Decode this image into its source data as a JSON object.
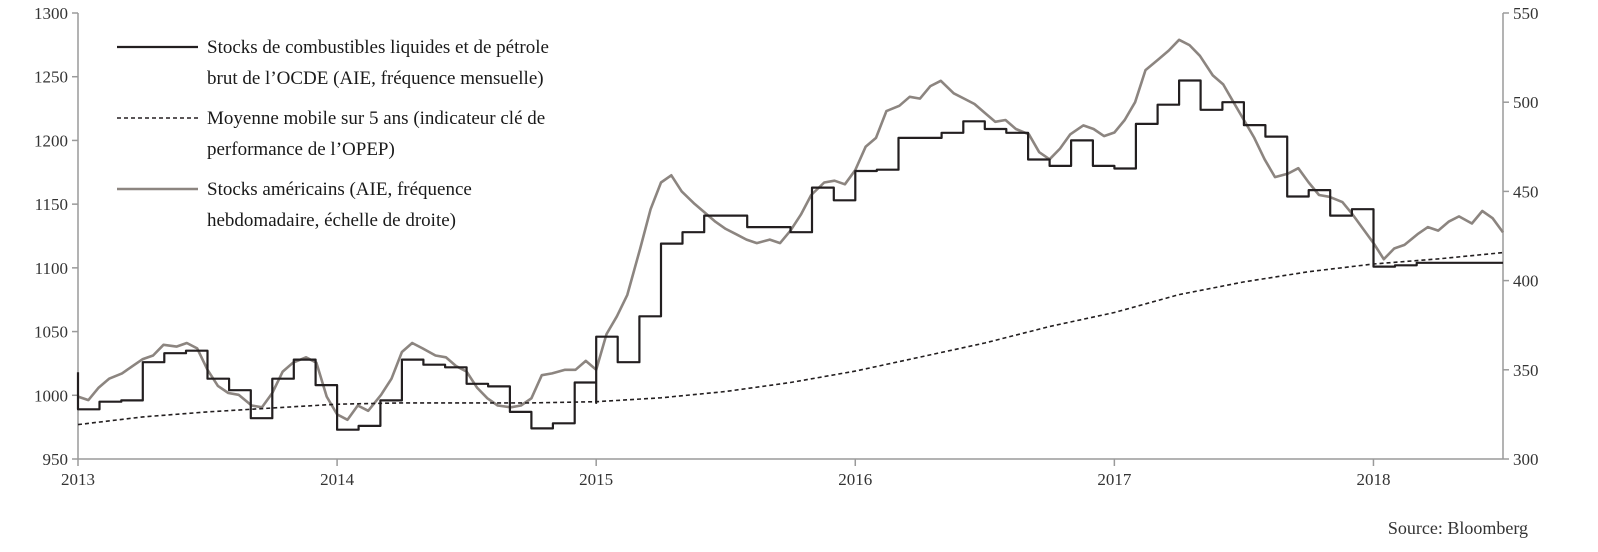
{
  "chart_data": {
    "type": "line",
    "title": "",
    "source": "Source: Bloomberg",
    "x_axis": {
      "range": [
        2013.0,
        2018.5
      ],
      "ticks": [
        "2013",
        "2014",
        "2015",
        "2016",
        "2017",
        "2018"
      ]
    },
    "y_left": {
      "range": [
        950,
        1300
      ],
      "ticks": [
        "950",
        "1000",
        "1050",
        "1100",
        "1150",
        "1200",
        "1250",
        "1300"
      ]
    },
    "y_right": {
      "range": [
        300,
        550
      ],
      "ticks": [
        "300",
        "350",
        "400",
        "450",
        "500",
        "550"
      ]
    },
    "grid": false,
    "legend_position": "top-left",
    "legend": [
      {
        "lines": [
          "Stocks de combustibles liquides et de pétrole",
          "brut de l’OCDE (AIE, fréquence mensuelle)"
        ]
      },
      {
        "lines": [
          "Moyenne mobile sur 5 ans (indicateur clé de",
          "performance de l’OPEP)"
        ]
      },
      {
        "lines": [
          "Stocks américains (AIE, fréquence",
          "hebdomadaire, échelle de droite)"
        ]
      }
    ],
    "series": [
      {
        "name": "Stocks de combustibles liquides et de pétrole brut de l’OCDE (AIE, fréquence mensuelle)",
        "axis": "left",
        "step": true,
        "color": "#231f20",
        "points": [
          [
            2013.0,
            1018
          ],
          [
            2013.0,
            989
          ],
          [
            2013.083,
            995
          ],
          [
            2013.167,
            996
          ],
          [
            2013.25,
            1026
          ],
          [
            2013.333,
            1033
          ],
          [
            2013.417,
            1035
          ],
          [
            2013.5,
            1013
          ],
          [
            2013.583,
            1004
          ],
          [
            2013.667,
            982
          ],
          [
            2013.75,
            1013
          ],
          [
            2013.833,
            1028
          ],
          [
            2013.917,
            1008
          ],
          [
            2014.0,
            973
          ],
          [
            2014.083,
            976
          ],
          [
            2014.167,
            996
          ],
          [
            2014.25,
            1028
          ],
          [
            2014.333,
            1024
          ],
          [
            2014.417,
            1022
          ],
          [
            2014.5,
            1009
          ],
          [
            2014.583,
            1007
          ],
          [
            2014.667,
            987
          ],
          [
            2014.75,
            974
          ],
          [
            2014.833,
            978
          ],
          [
            2014.917,
            1010
          ],
          [
            2015.0,
            994
          ],
          [
            2015.0,
            1046
          ],
          [
            2015.083,
            1026
          ],
          [
            2015.167,
            1062
          ],
          [
            2015.25,
            1119
          ],
          [
            2015.333,
            1128
          ],
          [
            2015.417,
            1141
          ],
          [
            2015.5,
            1141
          ],
          [
            2015.583,
            1132
          ],
          [
            2015.667,
            1132
          ],
          [
            2015.75,
            1128
          ],
          [
            2015.833,
            1163
          ],
          [
            2015.917,
            1153
          ],
          [
            2016.0,
            1176
          ],
          [
            2016.083,
            1177
          ],
          [
            2016.167,
            1202
          ],
          [
            2016.25,
            1202
          ],
          [
            2016.333,
            1206
          ],
          [
            2016.417,
            1215
          ],
          [
            2016.5,
            1209
          ],
          [
            2016.583,
            1206
          ],
          [
            2016.667,
            1185
          ],
          [
            2016.75,
            1180
          ],
          [
            2016.833,
            1200
          ],
          [
            2016.917,
            1180
          ],
          [
            2017.0,
            1178
          ],
          [
            2017.083,
            1213
          ],
          [
            2017.167,
            1228
          ],
          [
            2017.25,
            1247
          ],
          [
            2017.333,
            1224
          ],
          [
            2017.417,
            1230
          ],
          [
            2017.5,
            1212
          ],
          [
            2017.583,
            1203
          ],
          [
            2017.667,
            1156
          ],
          [
            2017.75,
            1161
          ],
          [
            2017.833,
            1141
          ],
          [
            2017.917,
            1146
          ],
          [
            2018.0,
            1101
          ],
          [
            2018.083,
            1102
          ],
          [
            2018.167,
            1104
          ],
          [
            2018.25,
            1104
          ],
          [
            2018.333,
            1104
          ],
          [
            2018.417,
            1104
          ],
          [
            2018.5,
            1104
          ]
        ]
      },
      {
        "name": "Moyenne mobile sur 5 ans (indicateur clé de performance de l’OPEP)",
        "axis": "left",
        "dashed": true,
        "color": "#231f20",
        "points": [
          [
            2013.0,
            977
          ],
          [
            2013.25,
            983
          ],
          [
            2013.5,
            987
          ],
          [
            2013.75,
            990
          ],
          [
            2014.0,
            993
          ],
          [
            2014.25,
            994
          ],
          [
            2014.5,
            994
          ],
          [
            2014.75,
            994
          ],
          [
            2015.0,
            995
          ],
          [
            2015.25,
            998
          ],
          [
            2015.5,
            1003
          ],
          [
            2015.75,
            1010
          ],
          [
            2016.0,
            1019
          ],
          [
            2016.25,
            1030
          ],
          [
            2016.5,
            1041
          ],
          [
            2016.75,
            1054
          ],
          [
            2017.0,
            1065
          ],
          [
            2017.25,
            1079
          ],
          [
            2017.5,
            1089
          ],
          [
            2017.75,
            1097
          ],
          [
            2018.0,
            1103
          ],
          [
            2018.25,
            1107
          ],
          [
            2018.5,
            1112
          ]
        ]
      },
      {
        "name": "Stocks américains (AIE, fréquence hebdomadaire, échelle de droite)",
        "axis": "right",
        "color": "#8c8580",
        "points": [
          [
            2013.0,
            335
          ],
          [
            2013.04,
            333
          ],
          [
            2013.08,
            340
          ],
          [
            2013.12,
            345
          ],
          [
            2013.17,
            348
          ],
          [
            2013.21,
            352
          ],
          [
            2013.25,
            356
          ],
          [
            2013.29,
            358
          ],
          [
            2013.33,
            364
          ],
          [
            2013.38,
            363
          ],
          [
            2013.42,
            365
          ],
          [
            2013.46,
            362
          ],
          [
            2013.5,
            350
          ],
          [
            2013.54,
            341
          ],
          [
            2013.58,
            337
          ],
          [
            2013.62,
            336
          ],
          [
            2013.67,
            330
          ],
          [
            2013.71,
            329
          ],
          [
            2013.75,
            337
          ],
          [
            2013.79,
            349
          ],
          [
            2013.83,
            354
          ],
          [
            2013.88,
            357
          ],
          [
            2013.92,
            354
          ],
          [
            2013.96,
            335
          ],
          [
            2014.0,
            325
          ],
          [
            2014.04,
            322
          ],
          [
            2014.08,
            330
          ],
          [
            2014.12,
            327
          ],
          [
            2014.17,
            336
          ],
          [
            2014.21,
            345
          ],
          [
            2014.25,
            360
          ],
          [
            2014.29,
            365
          ],
          [
            2014.33,
            362
          ],
          [
            2014.38,
            358
          ],
          [
            2014.42,
            357
          ],
          [
            2014.46,
            352
          ],
          [
            2014.5,
            349
          ],
          [
            2014.54,
            340
          ],
          [
            2014.58,
            334
          ],
          [
            2014.62,
            330
          ],
          [
            2014.67,
            329
          ],
          [
            2014.71,
            330
          ],
          [
            2014.75,
            334
          ],
          [
            2014.79,
            347
          ],
          [
            2014.83,
            348
          ],
          [
            2014.88,
            350
          ],
          [
            2014.92,
            350
          ],
          [
            2014.96,
            355
          ],
          [
            2015.0,
            350
          ],
          [
            2015.04,
            370
          ],
          [
            2015.08,
            380
          ],
          [
            2015.12,
            392
          ],
          [
            2015.17,
            418
          ],
          [
            2015.21,
            440
          ],
          [
            2015.25,
            455
          ],
          [
            2015.29,
            459
          ],
          [
            2015.33,
            450
          ],
          [
            2015.38,
            443
          ],
          [
            2015.42,
            438
          ],
          [
            2015.46,
            433
          ],
          [
            2015.5,
            429
          ],
          [
            2015.54,
            426
          ],
          [
            2015.58,
            423
          ],
          [
            2015.62,
            421
          ],
          [
            2015.67,
            423
          ],
          [
            2015.71,
            421
          ],
          [
            2015.75,
            428
          ],
          [
            2015.79,
            437
          ],
          [
            2015.83,
            448
          ],
          [
            2015.88,
            455
          ],
          [
            2015.92,
            456
          ],
          [
            2015.96,
            454
          ],
          [
            2016.0,
            462
          ],
          [
            2016.04,
            475
          ],
          [
            2016.08,
            480
          ],
          [
            2016.12,
            495
          ],
          [
            2016.17,
            498
          ],
          [
            2016.21,
            503
          ],
          [
            2016.25,
            502
          ],
          [
            2016.29,
            509
          ],
          [
            2016.33,
            512
          ],
          [
            2016.38,
            505
          ],
          [
            2016.42,
            502
          ],
          [
            2016.46,
            499
          ],
          [
            2016.5,
            494
          ],
          [
            2016.54,
            489
          ],
          [
            2016.58,
            490
          ],
          [
            2016.62,
            485
          ],
          [
            2016.67,
            482
          ],
          [
            2016.71,
            472
          ],
          [
            2016.75,
            468
          ],
          [
            2016.79,
            474
          ],
          [
            2016.83,
            482
          ],
          [
            2016.88,
            487
          ],
          [
            2016.92,
            485
          ],
          [
            2016.96,
            481
          ],
          [
            2017.0,
            483
          ],
          [
            2017.04,
            490
          ],
          [
            2017.08,
            500
          ],
          [
            2017.12,
            518
          ],
          [
            2017.17,
            524
          ],
          [
            2017.21,
            529
          ],
          [
            2017.25,
            535
          ],
          [
            2017.29,
            532
          ],
          [
            2017.33,
            526
          ],
          [
            2017.38,
            515
          ],
          [
            2017.42,
            510
          ],
          [
            2017.46,
            500
          ],
          [
            2017.5,
            490
          ],
          [
            2017.54,
            480
          ],
          [
            2017.58,
            468
          ],
          [
            2017.62,
            458
          ],
          [
            2017.67,
            460
          ],
          [
            2017.71,
            463
          ],
          [
            2017.75,
            455
          ],
          [
            2017.79,
            448
          ],
          [
            2017.83,
            447
          ],
          [
            2017.88,
            444
          ],
          [
            2017.92,
            437
          ],
          [
            2017.96,
            429
          ],
          [
            2018.0,
            421
          ],
          [
            2018.04,
            412
          ],
          [
            2018.08,
            418
          ],
          [
            2018.12,
            420
          ],
          [
            2018.17,
            426
          ],
          [
            2018.21,
            430
          ],
          [
            2018.25,
            428
          ],
          [
            2018.29,
            433
          ],
          [
            2018.33,
            436
          ],
          [
            2018.38,
            432
          ],
          [
            2018.42,
            439
          ],
          [
            2018.46,
            435
          ],
          [
            2018.5,
            427
          ]
        ]
      }
    ]
  }
}
